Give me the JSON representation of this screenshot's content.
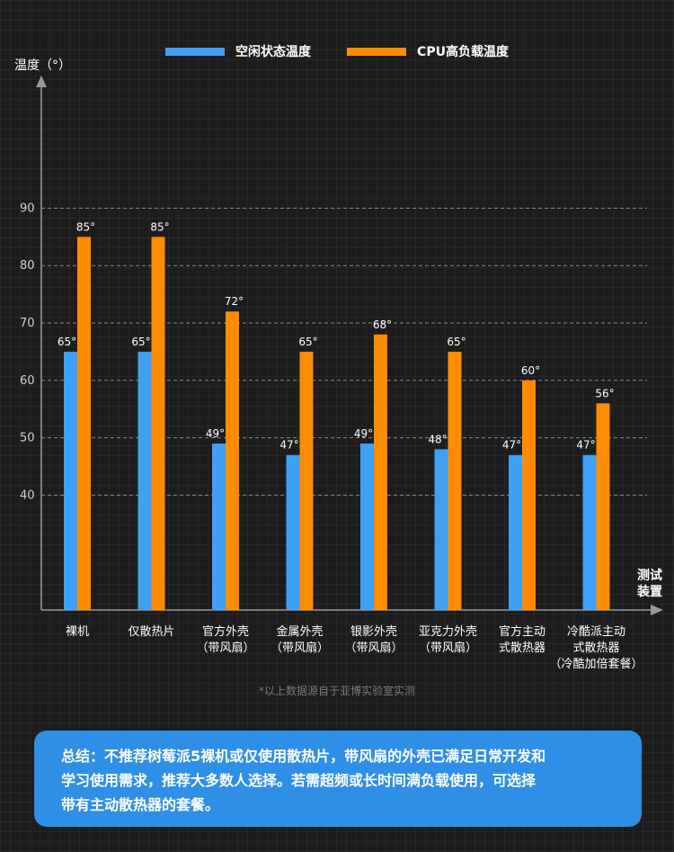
{
  "chart_data": {
    "type": "bar",
    "ylabel": "温度（°）",
    "xlabel": "测试装置",
    "yticks": [
      40,
      50,
      60,
      70,
      80,
      90
    ],
    "ylim": [
      20,
      100
    ],
    "grid": "horizontal dashed",
    "legend_position": "top-center",
    "categories": [
      [
        "裸机"
      ],
      [
        "仅散热片"
      ],
      [
        "官方外壳",
        "（带风扇）"
      ],
      [
        "金属外壳",
        "（带风扇）"
      ],
      [
        "银影外壳",
        "（带风扇）"
      ],
      [
        "亚克力外壳",
        "（带风扇）"
      ],
      [
        "官方主动",
        "式散热器"
      ],
      [
        "冷酷派主动",
        "式散热器",
        "（冷酷加倍套餐）"
      ]
    ],
    "series": [
      {
        "name": "空闲状态温度",
        "color": "#3fa0f5",
        "values": [
          65,
          65,
          49,
          47,
          49,
          48,
          47,
          47
        ],
        "labels": [
          "65°",
          "65°",
          "49°",
          "47°",
          "49°",
          "48°",
          "47°",
          "47°"
        ]
      },
      {
        "name": "CPU高负载温度",
        "color": "#ff8c00",
        "values": [
          85,
          85,
          72,
          65,
          68,
          65,
          60,
          56
        ],
        "labels": [
          "85°",
          "85°",
          "72°",
          "65°",
          "68°",
          "65°",
          "60°",
          "56°"
        ]
      }
    ]
  },
  "source_note": "*以上数据源自于亚博实验室实测",
  "summary": {
    "line1": "总结：不推荐树莓派5裸机或仅使用散热片，带风扇的外壳已满足日常开发和",
    "line2": "学习使用需求，推荐大多数人选择。若需超频或长时间满负载使用，可选择",
    "line3": "带有主动散热器的套餐。"
  }
}
